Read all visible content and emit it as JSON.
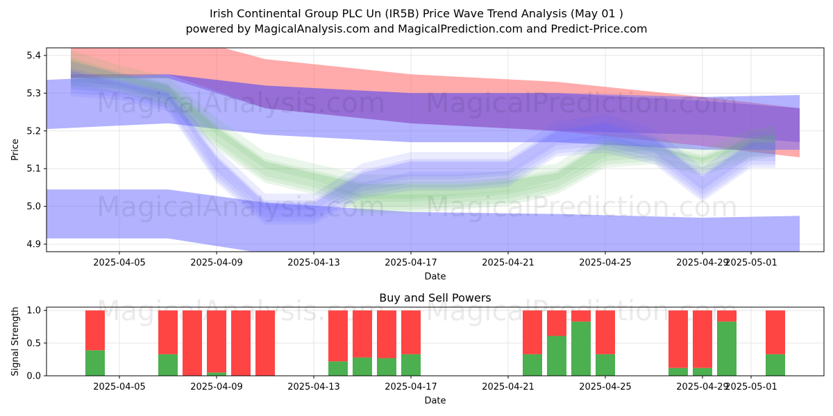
{
  "title_line1": "Irish Continental Group PLC Un (IR5B) Price Wave Trend Analysis (May 01 )",
  "title_line2": "powered by MagicalAnalysis.com and MagicalPrediction.com and Predict-Price.com",
  "watermarks": [
    "MagicalAnalysis.com",
    "MagicalPrediction.com"
  ],
  "colors": {
    "red_band": "#ff6666",
    "purple_band": "#8e44ad",
    "blue_band": "#6666ff",
    "green_band": "#66bb66",
    "buy": "#4caf50",
    "sell": "#ff4444"
  },
  "chart_data": [
    {
      "type": "area",
      "subtitle": "",
      "xlabel": "Date",
      "ylabel": "Price",
      "ylim": [
        4.88,
        5.42
      ],
      "xlim": [
        "2025-04-02",
        "2025-05-04"
      ],
      "x_ticks": [
        "2025-04-05",
        "2025-04-09",
        "2025-04-13",
        "2025-04-17",
        "2025-04-21",
        "2025-04-25",
        "2025-04-29",
        "2025-05-01"
      ],
      "y_ticks": [
        4.9,
        5.0,
        5.1,
        5.2,
        5.3,
        5.4
      ],
      "grid": true,
      "bands": [
        {
          "color": "red",
          "x": [
            "2025-04-03",
            "2025-04-07",
            "2025-04-11",
            "2025-04-17",
            "2025-04-23",
            "2025-04-29",
            "2025-05-03"
          ],
          "lower": [
            5.34,
            5.35,
            5.26,
            5.22,
            5.2,
            5.16,
            5.13
          ],
          "upper": [
            5.46,
            5.46,
            5.39,
            5.35,
            5.33,
            5.29,
            5.26
          ]
        },
        {
          "color": "purple",
          "x": [
            "2025-04-03",
            "2025-04-07",
            "2025-04-11",
            "2025-04-17",
            "2025-04-23",
            "2025-04-29",
            "2025-05-03"
          ],
          "lower": [
            5.34,
            5.34,
            5.26,
            5.22,
            5.2,
            5.19,
            5.17
          ],
          "upper": [
            5.35,
            5.35,
            5.32,
            5.3,
            5.3,
            5.28,
            5.26
          ]
        },
        {
          "color": "blue",
          "x": [
            "2025-04-02",
            "2025-04-07",
            "2025-04-11",
            "2025-04-17",
            "2025-04-23",
            "2025-04-29",
            "2025-05-03"
          ],
          "lower": [
            5.205,
            5.22,
            5.19,
            5.17,
            5.17,
            5.15,
            5.15
          ],
          "upper": [
            5.335,
            5.35,
            5.32,
            5.3,
            5.3,
            5.29,
            5.295
          ]
        },
        {
          "color": "blue",
          "x": [
            "2025-04-02",
            "2025-04-07",
            "2025-04-11",
            "2025-04-17",
            "2025-04-23",
            "2025-04-29",
            "2025-05-03"
          ],
          "lower": [
            4.915,
            4.915,
            4.875,
            4.85,
            4.85,
            4.84,
            4.84
          ],
          "upper": [
            5.045,
            5.045,
            5.01,
            4.985,
            4.98,
            4.97,
            4.975
          ]
        }
      ],
      "waves": [
        {
          "color": "green",
          "x": [
            "2025-04-03",
            "2025-04-05",
            "2025-04-07",
            "2025-04-09",
            "2025-04-11",
            "2025-04-13",
            "2025-04-15",
            "2025-04-17",
            "2025-04-19",
            "2025-04-21",
            "2025-04-23",
            "2025-04-25",
            "2025-04-27",
            "2025-04-29",
            "2025-05-01",
            "2025-05-02"
          ],
          "lower": [
            5.33,
            5.32,
            5.28,
            5.17,
            5.08,
            5.05,
            5.0,
            5.0,
            5.01,
            5.02,
            5.05,
            5.12,
            5.13,
            5.1,
            5.14,
            5.15
          ],
          "upper": [
            5.39,
            5.35,
            5.32,
            5.21,
            5.12,
            5.09,
            5.06,
            5.06,
            5.06,
            5.07,
            5.09,
            5.17,
            5.16,
            5.13,
            5.18,
            5.19
          ]
        },
        {
          "color": "blue",
          "x": [
            "2025-04-03",
            "2025-04-05",
            "2025-04-07",
            "2025-04-09",
            "2025-04-11",
            "2025-04-13",
            "2025-04-15",
            "2025-04-17",
            "2025-04-19",
            "2025-04-21",
            "2025-04-23",
            "2025-04-25",
            "2025-04-27",
            "2025-04-29",
            "2025-05-01",
            "2025-05-02"
          ],
          "lower": [
            5.31,
            5.3,
            5.27,
            5.08,
            4.97,
            4.97,
            5.04,
            5.06,
            5.06,
            5.07,
            5.15,
            5.16,
            5.13,
            5.03,
            5.12,
            5.12
          ],
          "upper": [
            5.36,
            5.33,
            5.3,
            5.13,
            5.01,
            5.01,
            5.09,
            5.12,
            5.12,
            5.12,
            5.2,
            5.22,
            5.18,
            5.08,
            5.17,
            5.17
          ]
        }
      ]
    },
    {
      "type": "bar",
      "title": "Buy and Sell Powers",
      "xlabel": "Date",
      "ylabel": "Signal Strength",
      "ylim": [
        0,
        1.05
      ],
      "y_ticks": [
        0.0,
        0.5,
        1.0
      ],
      "x_ticks": [
        "2025-04-05",
        "2025-04-09",
        "2025-04-13",
        "2025-04-17",
        "2025-04-21",
        "2025-04-25",
        "2025-04-29",
        "2025-05-01"
      ],
      "grid": true,
      "categories": [
        "2025-04-04",
        "2025-04-07",
        "2025-04-08",
        "2025-04-09",
        "2025-04-10",
        "2025-04-11",
        "2025-04-14",
        "2025-04-15",
        "2025-04-16",
        "2025-04-17",
        "2025-04-22",
        "2025-04-23",
        "2025-04-24",
        "2025-04-25",
        "2025-04-28",
        "2025-04-29",
        "2025-04-30",
        "2025-05-02"
      ],
      "series": [
        {
          "color": "buy",
          "values": [
            0.39,
            0.33,
            0.0,
            0.05,
            0.0,
            0.0,
            0.22,
            0.28,
            0.27,
            0.33,
            0.33,
            0.61,
            0.83,
            0.33,
            0.12,
            0.12,
            0.83,
            0.33
          ]
        },
        {
          "color": "sell",
          "values": [
            0.61,
            0.67,
            1.0,
            0.95,
            1.0,
            1.0,
            0.78,
            0.72,
            0.73,
            0.67,
            0.67,
            0.39,
            0.17,
            0.67,
            0.88,
            0.88,
            0.17,
            0.67
          ]
        }
      ]
    }
  ]
}
